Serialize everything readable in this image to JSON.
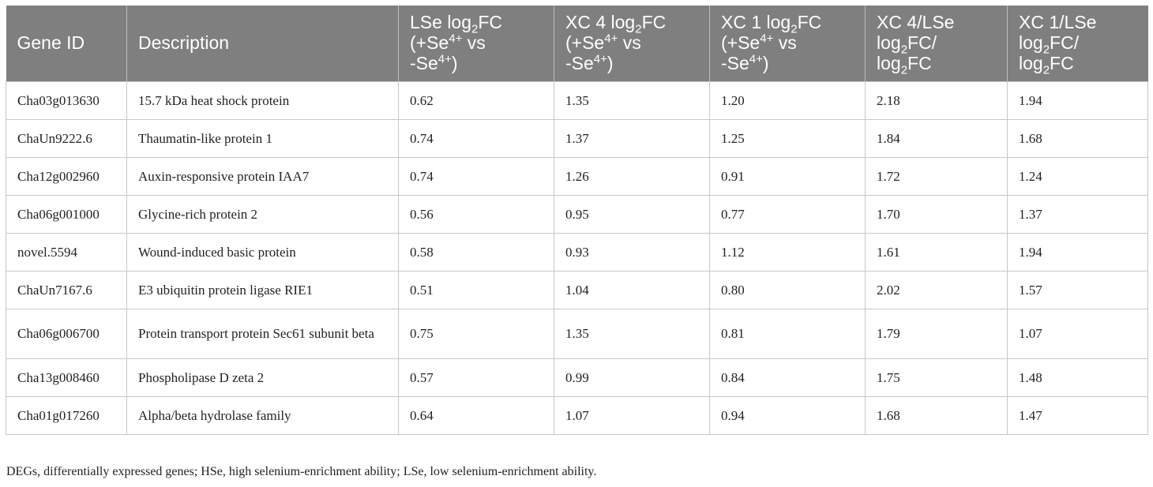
{
  "table": {
    "headers": [
      {
        "lines": [
          {
            "parts": [
              "Gene ID"
            ]
          }
        ]
      },
      {
        "lines": [
          {
            "parts": [
              "Description"
            ]
          }
        ]
      },
      {
        "lines": [
          {
            "parts": [
              "LSe log",
              {
                "sub": "2"
              },
              "FC"
            ]
          },
          {
            "parts": [
              "(+Se",
              {
                "sup": "4+"
              },
              " vs"
            ]
          },
          {
            "parts": [
              "-Se",
              {
                "sup": "4+"
              },
              ")"
            ]
          }
        ]
      },
      {
        "lines": [
          {
            "parts": [
              "XC 4 log",
              {
                "sub": "2"
              },
              "FC"
            ]
          },
          {
            "parts": [
              "(+Se",
              {
                "sup": "4+"
              },
              " vs"
            ]
          },
          {
            "parts": [
              "-Se",
              {
                "sup": "4+"
              },
              ")"
            ]
          }
        ]
      },
      {
        "lines": [
          {
            "parts": [
              "XC 1 log",
              {
                "sub": "2"
              },
              "FC"
            ]
          },
          {
            "parts": [
              "(+Se",
              {
                "sup": "4+"
              },
              " vs"
            ]
          },
          {
            "parts": [
              "-Se",
              {
                "sup": "4+"
              },
              ")"
            ]
          }
        ]
      },
      {
        "lines": [
          {
            "parts": [
              "XC 4/LSe"
            ]
          },
          {
            "parts": [
              "log",
              {
                "sub": "2"
              },
              "FC/"
            ]
          },
          {
            "parts": [
              "log",
              {
                "sub": "2"
              },
              "FC"
            ]
          }
        ]
      },
      {
        "lines": [
          {
            "parts": [
              "XC 1/LSe"
            ]
          },
          {
            "parts": [
              "log",
              {
                "sub": "2"
              },
              "FC/"
            ]
          },
          {
            "parts": [
              "log",
              {
                "sub": "2"
              },
              "FC"
            ]
          }
        ]
      }
    ],
    "rows": [
      [
        "Cha03g013630",
        "15.7 kDa heat shock protein",
        "0.62",
        "1.35",
        "1.20",
        "2.18",
        "1.94"
      ],
      [
        "ChaUn9222.6",
        "Thaumatin-like protein 1",
        "0.74",
        "1.37",
        "1.25",
        "1.84",
        "1.68"
      ],
      [
        "Cha12g002960",
        "Auxin-responsive protein IAA7",
        "0.74",
        "1.26",
        "0.91",
        "1.72",
        "1.24"
      ],
      [
        "Cha06g001000",
        "Glycine-rich protein 2",
        "0.56",
        "0.95",
        "0.77",
        "1.70",
        "1.37"
      ],
      [
        "novel.5594",
        "Wound-induced basic protein",
        "0.58",
        "0.93",
        "1.12",
        "1.61",
        "1.94"
      ],
      [
        "ChaUn7167.6",
        "E3 ubiquitin protein ligase RIE1",
        "0.51",
        "1.04",
        "0.80",
        "2.02",
        "1.57"
      ],
      [
        "Cha06g006700",
        "Protein transport protein Sec61 subunit beta",
        "0.75",
        "1.35",
        "0.81",
        "1.79",
        "1.07"
      ],
      [
        "Cha13g008460",
        "Phospholipase D zeta 2",
        "0.57",
        "0.99",
        "0.84",
        "1.75",
        "1.48"
      ],
      [
        "Cha01g017260",
        "Alpha/beta hydrolase family",
        "0.64",
        "1.07",
        "0.94",
        "1.68",
        "1.47"
      ]
    ]
  },
  "footnote": "DEGs, differentially expressed genes; HSe, high selenium-enrichment ability; LSe, low selenium-enrichment ability.",
  "colors": {
    "header_bg": "#7f7f7f",
    "header_text": "#ffffff",
    "border": "#c8c8c8"
  }
}
